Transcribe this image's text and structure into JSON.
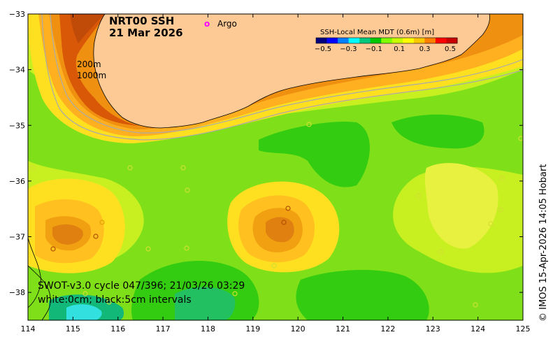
{
  "title": {
    "line1": "NRT00 SSH",
    "line2": "21 Mar 2026"
  },
  "argo_legend": {
    "symbol": "o",
    "label": "Argo",
    "color": "#ff00ff"
  },
  "colorbar": {
    "title": "SSH-Local Mean MDT (0.6m) [m]",
    "tick_labels": [
      "−0.5",
      "−0.3",
      "−0.1",
      "0.1",
      "0.3",
      "0.5"
    ],
    "colors": [
      "#00007f",
      "#0000ff",
      "#007fff",
      "#00ffff",
      "#00c87f",
      "#00c800",
      "#7fff00",
      "#c8ff00",
      "#ffff00",
      "#ffc800",
      "#ff7f00",
      "#ff0000",
      "#c80000"
    ]
  },
  "depth_labels": [
    "200m",
    "1000m"
  ],
  "x_axis": {
    "range": [
      114,
      125
    ],
    "tick_labels": [
      "114",
      "115",
      "116",
      "117",
      "118",
      "119",
      "120",
      "121",
      "122",
      "123",
      "124",
      "125"
    ]
  },
  "y_axis": {
    "range": [
      -38.5,
      -33
    ],
    "tick_labels": [
      "−33",
      "−34",
      "−35",
      "−36",
      "−37",
      "−38"
    ]
  },
  "footer_note": {
    "line1": "SWOT-v3.0 cycle 047/396; 21/03/26 03:29",
    "line2": "white:0cm; black:5cm intervals"
  },
  "credit": "© IMOS 15-Apr-2026 14:05 Hobart",
  "colors": {
    "land": "#fdc995",
    "background_field": "#c0f020"
  }
}
